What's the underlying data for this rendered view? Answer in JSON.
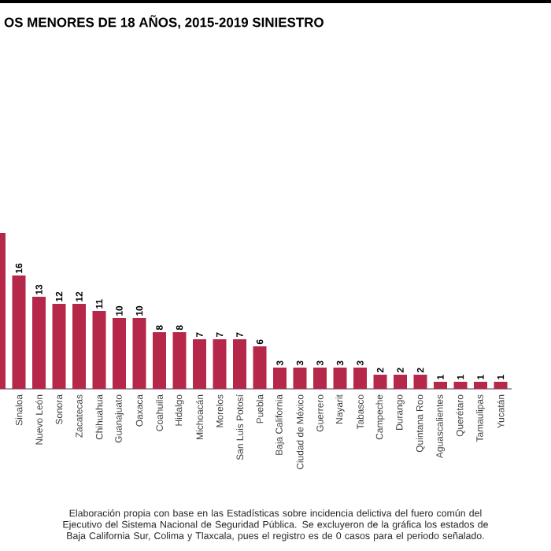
{
  "chart_data": {
    "type": "bar",
    "title": "OS MENORES DE 18 AÑOS, 2015-2019 SINIESTRO",
    "categories": [
      null,
      "Sinaloa",
      "Nuevo León",
      "Sonora",
      "Zacatecas",
      "Chihuahua",
      "Guanajuato",
      "Oaxaca",
      "Coahuila",
      "Hidalgo",
      "Michoacán",
      "Morelos",
      "San Luis Potosí",
      "Puebla",
      "Baja California",
      "Ciudad de México",
      "Guerrero",
      "Nayarit",
      "Tabasco",
      "Campeche",
      "Durango",
      "Quintana Roo",
      "Aguascalientes",
      "Querétaro",
      "Tamaulipas",
      "Yucatán"
    ],
    "values": [
      22,
      16,
      13,
      12,
      12,
      11,
      10,
      10,
      8,
      8,
      7,
      7,
      7,
      6,
      3,
      3,
      3,
      3,
      3,
      2,
      2,
      2,
      1,
      1,
      1,
      1
    ],
    "value_labels": [
      null,
      "16",
      "13",
      "12",
      "12",
      "11",
      "10",
      "10",
      "8",
      "8",
      "7",
      "7",
      "7",
      "6",
      "3",
      "3",
      "3",
      "3",
      "3",
      "2",
      "2",
      "2",
      "1",
      "1",
      "1",
      "1"
    ],
    "color": "#b5284a",
    "annotations": [
      "Elaboración propia con base en las Estadísticas sobre incidencia delictiva del fuero común del Ejecutivo del Sistema Nacional de Seguridad Pública. Se excluyeron de la gráfica los estados de Baja California Sur, Colima y Tlaxcala, pues el registro es de 0 casos para el periodo señalado."
    ]
  }
}
